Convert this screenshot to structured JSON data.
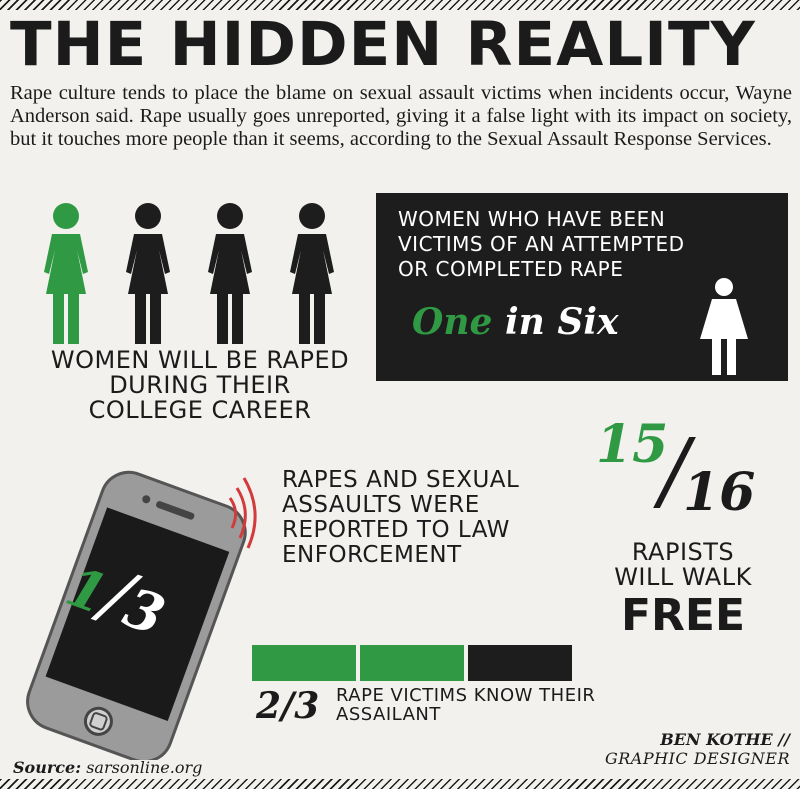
{
  "title": "THE HIDDEN REALITY",
  "intro": "Rape culture tends to place the blame on sexual assault victims when incidents occur, Wayne Anderson said. Rape usually goes unreported, giving it a false light with its impact on society, but it touches more people than it seems, according to the Sexual Assault Response Services.",
  "colors": {
    "green": "#2f9a43",
    "dark": "#1d1d1d",
    "background": "#f2f1ee",
    "arcs": "#d23b3b"
  },
  "women_stat": {
    "icons": [
      "woman-icon",
      "woman-icon",
      "woman-icon",
      "woman-icon"
    ],
    "highlighted": 1,
    "total": 4,
    "text": "WOMEN WILL BE RAPED DURING THEIR COLLEGE CAREER"
  },
  "box": {
    "text": "WOMEN WHO HAVE BEEN VICTIMS OF AN ATTEMPTED OR COMPLETED RAPE",
    "stat_one": "One",
    "stat_in_six": "in Six",
    "icon": "woman-icon"
  },
  "phone": {
    "fraction_num": "1",
    "fraction_den": "3",
    "text": "RAPES AND SEXUAL ASSAULTS WERE REPORTED TO LAW ENFORCEMENT",
    "icon": "phone-icon"
  },
  "rapists": {
    "fraction_num": "15",
    "fraction_slash": "/",
    "fraction_den": "16",
    "text": "RAPISTS WILL WALK",
    "emphasis": "FREE"
  },
  "victims": {
    "bar_filled": 2,
    "bar_total": 3,
    "fraction": "2/3",
    "text": "RAPE VICTIMS KNOW THEIR ASSAILANT"
  },
  "source": {
    "label": "Source:",
    "value": "sarsonline.org"
  },
  "credit": {
    "name": "BEN KOTHE //",
    "role": "GRAPHIC DESIGNER"
  }
}
